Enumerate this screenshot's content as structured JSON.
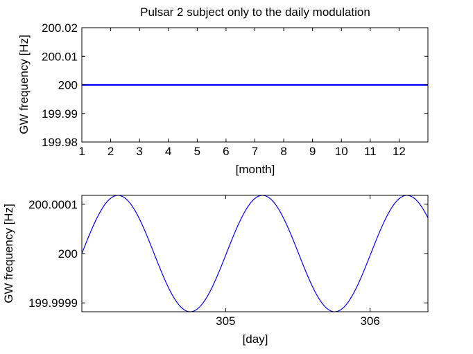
{
  "chart_data": [
    {
      "type": "line",
      "title": "Pulsar 2 subject only to the daily modulation",
      "xlabel": "[month]",
      "ylabel": "GW frequency [Hz]",
      "xlim": [
        1,
        13
      ],
      "ylim": [
        199.98,
        200.02
      ],
      "xticks": [
        1,
        2,
        3,
        4,
        5,
        6,
        7,
        8,
        9,
        10,
        11,
        12
      ],
      "xtick_labels": [
        "1",
        "2",
        "3",
        "4",
        "5",
        "6",
        "7",
        "8",
        "9",
        "10",
        "11",
        "12"
      ],
      "yticks": [
        199.98,
        199.99,
        200,
        200.01,
        200.02
      ],
      "ytick_labels": [
        "199.98",
        "199.99",
        "200",
        "200.01",
        "200.02"
      ],
      "grid": false,
      "series": [
        {
          "name": "GW frequency",
          "color": "#0000ff",
          "x": [
            1,
            13
          ],
          "y": [
            200,
            200
          ]
        }
      ]
    },
    {
      "type": "line",
      "title": "",
      "xlabel": "[day]",
      "ylabel": "GW frequency [Hz]",
      "xlim": [
        304.005,
        306.4
      ],
      "ylim": [
        199.999882,
        200.000118
      ],
      "xticks": [
        305,
        306
      ],
      "xtick_labels": [
        "305",
        "306"
      ],
      "yticks": [
        199.9999,
        200,
        200.0001
      ],
      "ytick_labels": [
        "199.9999",
        "200",
        "200.0001"
      ],
      "grid": false,
      "series": [
        {
          "name": "GW frequency",
          "color": "#0000ff",
          "model": "sine",
          "center": 200,
          "amplitude": 0.000118,
          "period_days": 1.0,
          "zero_crossing_day": 304.005
        }
      ]
    }
  ]
}
